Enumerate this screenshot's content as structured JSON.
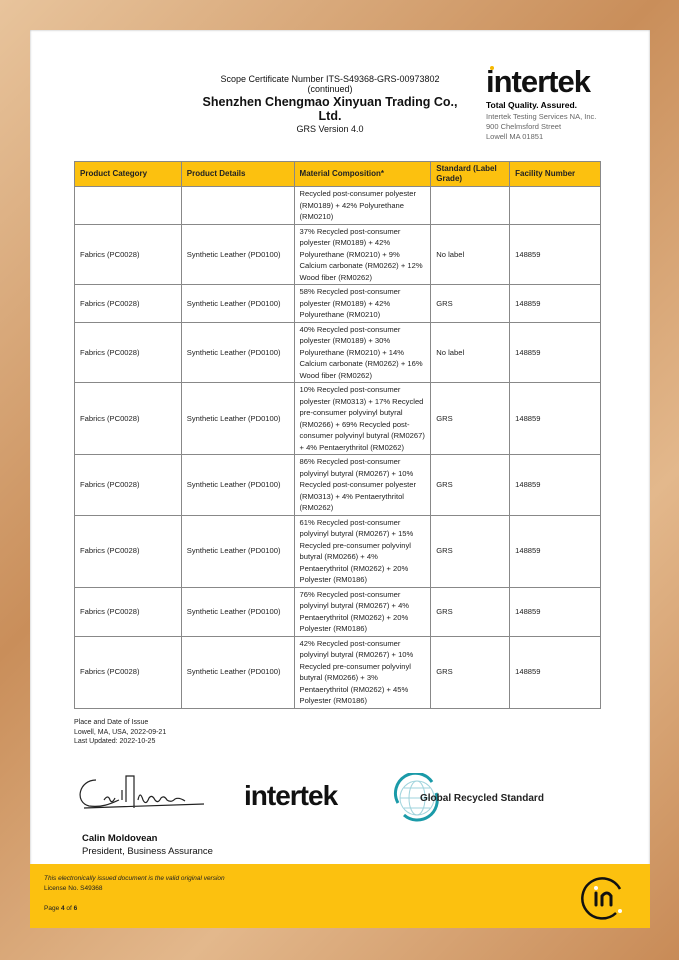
{
  "header": {
    "scope_line": "Scope Certificate Number ITS-S49368-GRS-00973802 (continued)",
    "company": "Shenzhen Chengmao Xinyuan Trading Co., Ltd.",
    "version": "GRS Version 4.0"
  },
  "logo": {
    "word": "intertek",
    "tagline": "Total Quality. Assured.",
    "address": [
      "Intertek Testing Services NA, Inc.",
      "900 Chelmsford Street",
      "Lowell MA 01851"
    ]
  },
  "table": {
    "headers": [
      "Product Category",
      "Product Details",
      "Material Composition*",
      "Standard (Label Grade)",
      "Facility Number"
    ],
    "rows": [
      [
        "",
        "",
        "Recycled post-consumer polyester (RM0189) + 42% Polyurethane (RM0210)",
        "",
        ""
      ],
      [
        "Fabrics (PC0028)",
        "Synthetic Leather (PD0100)",
        "37% Recycled post-consumer polyester (RM0189) + 42% Polyurethane (RM0210) + 9% Calcium carbonate (RM0262) + 12% Wood fiber (RM0262)",
        "No label",
        "148859"
      ],
      [
        "Fabrics (PC0028)",
        "Synthetic Leather (PD0100)",
        "58% Recycled post-consumer polyester (RM0189) + 42% Polyurethane (RM0210)",
        "GRS",
        "148859"
      ],
      [
        "Fabrics (PC0028)",
        "Synthetic Leather (PD0100)",
        "40% Recycled post-consumer polyester (RM0189) + 30% Polyurethane (RM0210) + 14% Calcium carbonate (RM0262) + 16% Wood fiber (RM0262)",
        "No label",
        "148859"
      ],
      [
        "Fabrics (PC0028)",
        "Synthetic Leather (PD0100)",
        "10% Recycled post-consumer polyester (RM0313) + 17% Recycled pre-consumer polyvinyl butyral (RM0266) + 69% Recycled post-consumer polyvinyl butyral (RM0267) + 4% Pentaerythritol (RM0262)",
        "GRS",
        "148859"
      ],
      [
        "Fabrics (PC0028)",
        "Synthetic Leather (PD0100)",
        "86% Recycled post-consumer polyvinyl butyral (RM0267) + 10% Recycled post-consumer polyester (RM0313) + 4% Pentaerythritol (RM0262)",
        "GRS",
        "148859"
      ],
      [
        "Fabrics (PC0028)",
        "Synthetic Leather (PD0100)",
        "61% Recycled post-consumer polyvinyl butyral (RM0267) + 15% Recycled pre-consumer polyvinyl butyral (RM0266) + 4% Pentaerythritol (RM0262) + 20% Polyester (RM0186)",
        "GRS",
        "148859"
      ],
      [
        "Fabrics (PC0028)",
        "Synthetic Leather (PD0100)",
        "76% Recycled post-consumer polyvinyl butyral (RM0267) + 4% Pentaerythritol (RM0262) + 20% Polyester (RM0186)",
        "GRS",
        "148859"
      ],
      [
        "Fabrics (PC0028)",
        "Synthetic Leather (PD0100)",
        "42% Recycled post-consumer polyvinyl butyral (RM0267) + 10% Recycled pre-consumer polyvinyl butyral (RM0266) + 3% Pentaerythritol (RM0262) + 45% Polyester (RM0186)",
        "GRS",
        "148859"
      ]
    ]
  },
  "issue": {
    "label": "Place and Date of Issue",
    "place_date": "Lowell, MA, USA, 2022-09-21",
    "updated": "Last Updated: 2022-10-25"
  },
  "signature_text": "Calin Moldovean",
  "grs_logo": "Global Recycled Standard",
  "signer": {
    "name": "Calin Moldovean",
    "title": "President, Business Assurance"
  },
  "footer": {
    "note": "This electronically issued document is the valid original version",
    "license": "License No. S49368",
    "page_prefix": "Page ",
    "page": "4",
    "page_of": " of ",
    "page_total": "6"
  },
  "colors": {
    "accent": "#fcc10f",
    "grs_teal": "#1a9aa8"
  }
}
